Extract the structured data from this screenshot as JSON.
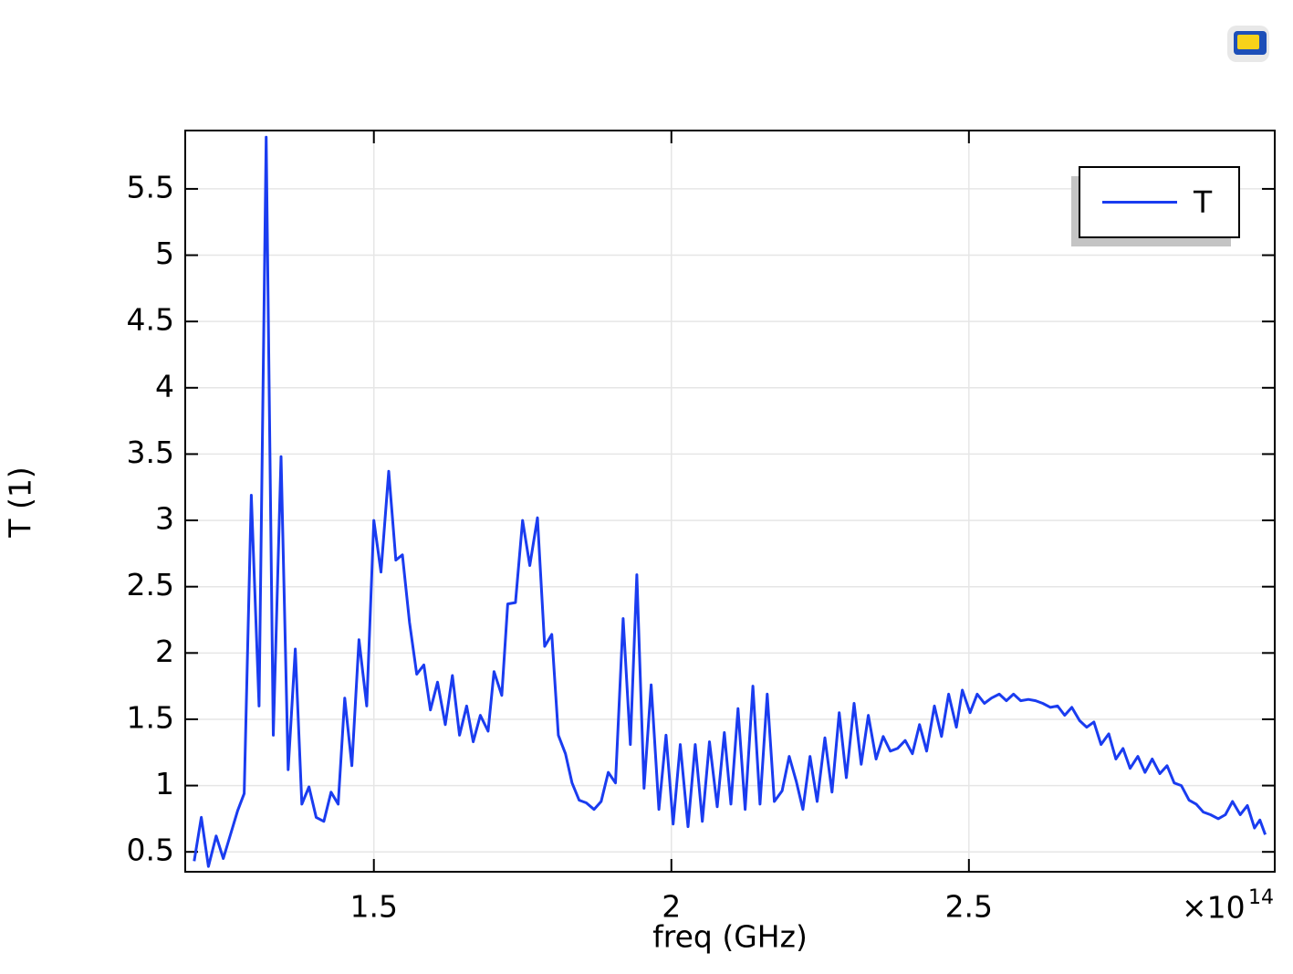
{
  "chart_data": {
    "type": "line",
    "xlabel": "freq (GHz)",
    "ylabel": "T (1)",
    "x_multiplier": "×10",
    "x_exponent": "14",
    "x": [
      1.198,
      1.21,
      1.222,
      1.235,
      1.247,
      1.271,
      1.282,
      1.294,
      1.307,
      1.319,
      1.331,
      1.344,
      1.356,
      1.368,
      1.379,
      1.391,
      1.403,
      1.416,
      1.428,
      1.44,
      1.451,
      1.463,
      1.475,
      1.488,
      1.5,
      1.512,
      1.525,
      1.537,
      1.548,
      1.56,
      1.572,
      1.584,
      1.595,
      1.607,
      1.62,
      1.632,
      1.644,
      1.656,
      1.667,
      1.679,
      1.692,
      1.702,
      1.715,
      1.725,
      1.738,
      1.75,
      1.762,
      1.775,
      1.787,
      1.799,
      1.81,
      1.822,
      1.833,
      1.845,
      1.857,
      1.87,
      1.882,
      1.894,
      1.906,
      1.919,
      1.931,
      1.942,
      1.954,
      1.966,
      1.979,
      1.991,
      2.003,
      2.015,
      2.028,
      2.04,
      2.052,
      2.064,
      2.077,
      2.089,
      2.1,
      2.112,
      2.124,
      2.137,
      2.149,
      2.161,
      2.173,
      2.186,
      2.198,
      2.21,
      2.221,
      2.233,
      2.245,
      2.258,
      2.27,
      2.282,
      2.294,
      2.307,
      2.319,
      2.331,
      2.344,
      2.356,
      2.368,
      2.38,
      2.393,
      2.405,
      2.417,
      2.429,
      2.442,
      2.454,
      2.466,
      2.479,
      2.489,
      2.502,
      2.514,
      2.526,
      2.538,
      2.551,
      2.563,
      2.575,
      2.587,
      2.6,
      2.612,
      2.624,
      2.637,
      2.649,
      2.661,
      2.673,
      2.686,
      2.698,
      2.71,
      2.722,
      2.735,
      2.747,
      2.759,
      2.771,
      2.784,
      2.796,
      2.808,
      2.821,
      2.833,
      2.845,
      2.857,
      2.87,
      2.882,
      2.894,
      2.906,
      2.919,
      2.931,
      2.943,
      2.956,
      2.968,
      2.98,
      2.989,
      2.998
    ],
    "series": [
      {
        "name": "T",
        "color": "#1a3cf0",
        "values": [
          0.43,
          0.76,
          0.39,
          0.62,
          0.45,
          0.81,
          0.94,
          3.19,
          1.6,
          5.89,
          1.38,
          3.48,
          1.12,
          2.03,
          0.86,
          0.99,
          0.76,
          0.73,
          0.95,
          0.86,
          1.66,
          1.15,
          2.1,
          1.6,
          3.0,
          2.61,
          3.37,
          2.7,
          2.74,
          2.23,
          1.84,
          1.91,
          1.57,
          1.78,
          1.46,
          1.83,
          1.38,
          1.6,
          1.33,
          1.53,
          1.41,
          1.86,
          1.68,
          2.37,
          2.38,
          3.0,
          2.66,
          3.02,
          2.05,
          2.14,
          1.38,
          1.24,
          1.02,
          0.89,
          0.87,
          0.82,
          0.88,
          1.1,
          1.02,
          2.26,
          1.31,
          2.59,
          0.98,
          1.76,
          0.82,
          1.38,
          0.71,
          1.31,
          0.69,
          1.31,
          0.73,
          1.33,
          0.84,
          1.4,
          0.86,
          1.58,
          0.82,
          1.75,
          0.86,
          1.69,
          0.88,
          0.96,
          1.22,
          1.03,
          0.82,
          1.22,
          0.88,
          1.36,
          0.95,
          1.55,
          1.06,
          1.62,
          1.16,
          1.53,
          1.2,
          1.37,
          1.26,
          1.28,
          1.34,
          1.24,
          1.46,
          1.26,
          1.6,
          1.37,
          1.69,
          1.44,
          1.72,
          1.55,
          1.69,
          1.62,
          1.66,
          1.69,
          1.64,
          1.69,
          1.64,
          1.65,
          1.64,
          1.62,
          1.59,
          1.6,
          1.53,
          1.59,
          1.49,
          1.44,
          1.48,
          1.31,
          1.39,
          1.2,
          1.28,
          1.13,
          1.22,
          1.1,
          1.2,
          1.09,
          1.15,
          1.02,
          1.0,
          0.89,
          0.86,
          0.8,
          0.78,
          0.75,
          0.78,
          0.88,
          0.78,
          0.85,
          0.68,
          0.74,
          0.63
        ]
      }
    ],
    "xlim": [
      1.183,
      3.014
    ],
    "ylim": [
      0.35,
      5.94
    ],
    "xticks": [
      1.5,
      2,
      2.5
    ],
    "yticks": [
      0.5,
      1,
      1.5,
      2,
      2.5,
      3,
      3.5,
      4,
      4.5,
      5,
      5.5
    ],
    "grid": true,
    "legend": "upper right"
  }
}
